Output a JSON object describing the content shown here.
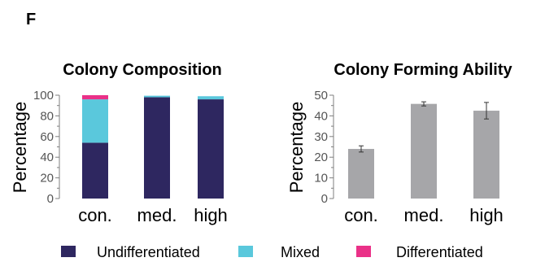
{
  "panel_letter": "F",
  "legend": [
    {
      "label": "Undifferentiated",
      "color": "#2e2760"
    },
    {
      "label": "Mixed",
      "color": "#5ac8dc"
    },
    {
      "label": "Differentiated",
      "color": "#ea3188"
    }
  ],
  "chart_data": [
    {
      "type": "bar",
      "stacked": true,
      "title": "Colony Composition",
      "ylabel": "Percentage",
      "xlabel": "",
      "ylim": [
        0,
        100
      ],
      "yticks": [
        "0",
        "20",
        "40",
        "60",
        "80",
        "100"
      ],
      "categories": [
        "con.",
        "med.",
        "high"
      ],
      "series": [
        {
          "name": "Undifferentiated",
          "color": "#2e2760",
          "values": [
            54,
            98,
            96
          ]
        },
        {
          "name": "Mixed",
          "color": "#5ac8dc",
          "values": [
            42,
            1.5,
            3
          ]
        },
        {
          "name": "Differentiated",
          "color": "#ea3188",
          "values": [
            4,
            0,
            0
          ]
        }
      ]
    },
    {
      "type": "bar",
      "title": "Colony Forming Ability",
      "ylabel": "Percentage",
      "xlabel": "",
      "ylim": [
        0,
        50
      ],
      "yticks": [
        "0",
        "10",
        "20",
        "30",
        "40",
        "50"
      ],
      "categories": [
        "con.",
        "med.",
        "high"
      ],
      "color": "#a6a6a9",
      "values": [
        24,
        45.8,
        42.5
      ],
      "errors": [
        1.5,
        1,
        4
      ]
    }
  ]
}
